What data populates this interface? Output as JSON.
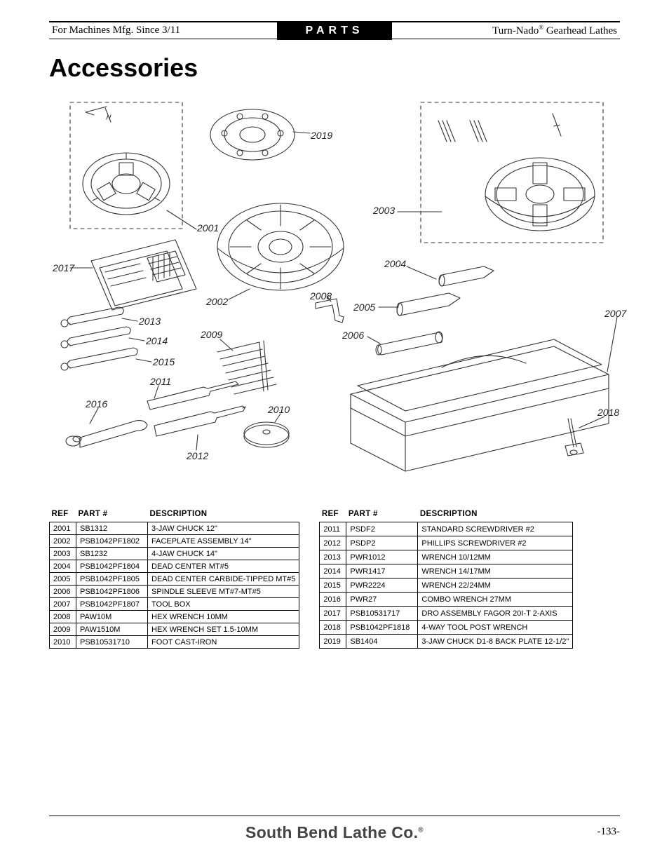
{
  "header": {
    "left": "For Machines Mfg. Since 3/11",
    "center": "PARTS",
    "right_prefix": "Turn-Nado",
    "right_suffix": " Gearhead Lathes"
  },
  "title": "Accessories",
  "callouts": {
    "c2001": "2001",
    "c2002": "2002",
    "c2003": "2003",
    "c2004": "2004",
    "c2005": "2005",
    "c2006": "2006",
    "c2007": "2007",
    "c2008": "2008",
    "c2009": "2009",
    "c2010": "2010",
    "c2011": "2011",
    "c2012": "2012",
    "c2013": "2013",
    "c2014": "2014",
    "c2015": "2015",
    "c2016": "2016",
    "c2017": "2017",
    "c2018": "2018",
    "c2019": "2019"
  },
  "tableHeaders": {
    "ref": "REF",
    "part": "PART #",
    "desc": "DESCRIPTION"
  },
  "tableLeft": [
    {
      "ref": "2001",
      "part": "SB1312",
      "desc": "3-JAW CHUCK 12\""
    },
    {
      "ref": "2002",
      "part": "PSB1042PF1802",
      "desc": "FACEPLATE ASSEMBLY 14\""
    },
    {
      "ref": "2003",
      "part": "SB1232",
      "desc": "4-JAW CHUCK 14\""
    },
    {
      "ref": "2004",
      "part": "PSB1042PF1804",
      "desc": "DEAD CENTER MT#5"
    },
    {
      "ref": "2005",
      "part": "PSB1042PF1805",
      "desc": "DEAD CENTER CARBIDE-TIPPED MT#5"
    },
    {
      "ref": "2006",
      "part": "PSB1042PF1806",
      "desc": "SPINDLE SLEEVE MT#7-MT#5"
    },
    {
      "ref": "2007",
      "part": "PSB1042PF1807",
      "desc": "TOOL BOX"
    },
    {
      "ref": "2008",
      "part": "PAW10M",
      "desc": "HEX WRENCH 10MM"
    },
    {
      "ref": "2009",
      "part": "PAW1510M",
      "desc": "HEX WRENCH SET 1.5-10MM"
    },
    {
      "ref": "2010",
      "part": "PSB10531710",
      "desc": "FOOT CAST-IRON"
    }
  ],
  "tableRight": [
    {
      "ref": "2011",
      "part": "PSDF2",
      "desc": "STANDARD SCREWDRIVER #2"
    },
    {
      "ref": "2012",
      "part": "PSDP2",
      "desc": "PHILLIPS SCREWDRIVER #2"
    },
    {
      "ref": "2013",
      "part": "PWR1012",
      "desc": "WRENCH 10/12MM"
    },
    {
      "ref": "2014",
      "part": "PWR1417",
      "desc": "WRENCH 14/17MM"
    },
    {
      "ref": "2015",
      "part": "PWR2224",
      "desc": "WRENCH 22/24MM"
    },
    {
      "ref": "2016",
      "part": "PWR27",
      "desc": "COMBO WRENCH 27MM"
    },
    {
      "ref": "2017",
      "part": "PSB10531717",
      "desc": "DRO ASSEMBLY FAGOR 20I-T 2-AXIS"
    },
    {
      "ref": "2018",
      "part": "PSB1042PF1818",
      "desc": "4-WAY TOOL POST WRENCH"
    },
    {
      "ref": "2019",
      "part": "SB1404",
      "desc": "3-JAW CHUCK D1-8 BACK PLATE 12-1/2\""
    }
  ],
  "footer": {
    "company": "South Bend Lathe Co.",
    "page": "-133-"
  },
  "style": {
    "stroke": "#333333",
    "stroke_width": 1.1,
    "dash": "4 4"
  }
}
